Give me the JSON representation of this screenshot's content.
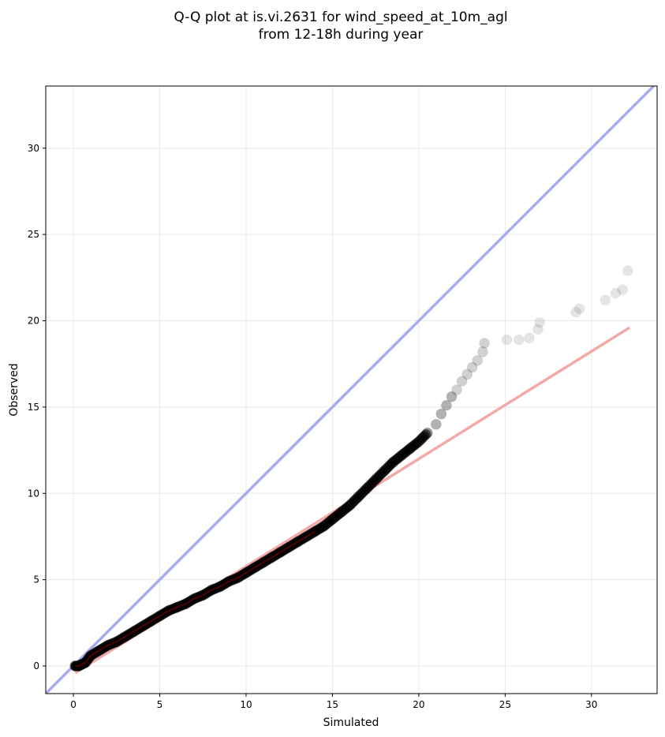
{
  "chart_data": {
    "type": "scatter",
    "title": "Q-Q plot at is.vi.2631 for wind_speed_at_10m_agl",
    "subtitle": "from 12-18h during year",
    "xlabel": "Simulated",
    "ylabel": "Observed",
    "xlim": [
      -1.6,
      33.8
    ],
    "ylim": [
      -1.6,
      33.6
    ],
    "xticks": [
      0,
      5,
      10,
      15,
      20,
      25,
      30
    ],
    "yticks": [
      0,
      5,
      10,
      15,
      20,
      25,
      30
    ],
    "grid": true,
    "identity_line": {
      "color": "#aaaaf0",
      "x": [
        -1.6,
        33.8
      ],
      "y": [
        -1.6,
        33.8
      ]
    },
    "fit_line": {
      "color": "#f4a9a9",
      "x": [
        0.1,
        32.2
      ],
      "y": [
        -0.4,
        19.6
      ]
    },
    "series": [
      {
        "marker_color": "#000000",
        "x": [
          0.1,
          0.3,
          0.5,
          0.7,
          1.0,
          1.5,
          2.0,
          2.5,
          3.0,
          3.5,
          4.0,
          4.5,
          5.0,
          5.5,
          6.0,
          6.5,
          7.0,
          7.5,
          8.0,
          8.5,
          9.0,
          9.5,
          10.0,
          10.5,
          11.0,
          11.5,
          12.0,
          12.5,
          13.0,
          13.5,
          14.0,
          14.5,
          15.0,
          15.5,
          16.0,
          16.5,
          17.0,
          17.5,
          18.0,
          18.5,
          19.0,
          19.5,
          20.0,
          20.5,
          21.0,
          21.3,
          21.6,
          21.9,
          22.2,
          22.5,
          22.8,
          23.1,
          23.4,
          23.7,
          23.8,
          25.1,
          25.8,
          26.4,
          26.9,
          27.0,
          29.1,
          29.3,
          30.8,
          31.4,
          31.8,
          32.1
        ],
        "y": [
          0.0,
          0.0,
          0.1,
          0.2,
          0.6,
          0.9,
          1.2,
          1.4,
          1.7,
          2.0,
          2.3,
          2.6,
          2.9,
          3.2,
          3.4,
          3.6,
          3.9,
          4.1,
          4.4,
          4.6,
          4.9,
          5.1,
          5.4,
          5.7,
          6.0,
          6.3,
          6.6,
          6.9,
          7.2,
          7.5,
          7.8,
          8.1,
          8.5,
          8.9,
          9.3,
          9.8,
          10.3,
          10.8,
          11.3,
          11.8,
          12.2,
          12.6,
          13.0,
          13.5,
          14.0,
          14.6,
          15.1,
          15.6,
          16.0,
          16.5,
          16.9,
          17.3,
          17.7,
          18.2,
          18.7,
          18.9,
          18.9,
          19.0,
          19.5,
          19.9,
          20.5,
          20.7,
          21.2,
          21.6,
          21.8,
          22.9
        ]
      }
    ]
  }
}
